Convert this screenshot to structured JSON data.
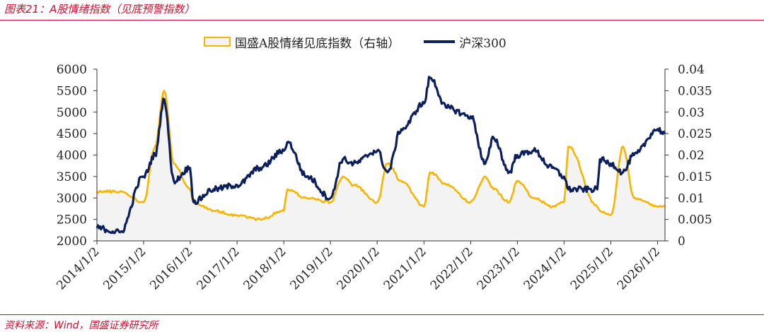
{
  "figure_title": "图表21：A股情绪指数（见底预警指数）",
  "source": "资料来源：Wind，国盛证券研究所",
  "colors": {
    "sentiment": "#f7b500",
    "sentiment_fill": "#f3f3f3",
    "index": "#0b1f5c",
    "accent": "#c8102e"
  },
  "chart_data": {
    "type": "line",
    "title": "图表21：A股情绪指数（见底预警指数）",
    "x": [
      "2014/1/2",
      "2014/7/1",
      "2015/1/2",
      "2015/4/1",
      "2015/6/12",
      "2015/8/26",
      "2015/12/31",
      "2016/1/28",
      "2016/7/1",
      "2017/1/2",
      "2017/7/1",
      "2018/1/2",
      "2018/1/29",
      "2018/7/1",
      "2019/1/2",
      "2019/4/8",
      "2019/7/1",
      "2020/1/2",
      "2020/3/23",
      "2020/7/9",
      "2021/1/2",
      "2021/2/18",
      "2021/7/1",
      "2022/1/2",
      "2022/4/26",
      "2022/7/1",
      "2022/10/31",
      "2023/1/2",
      "2023/5/9",
      "2023/10/1",
      "2024/1/2",
      "2024/2/5",
      "2024/9/18",
      "2024/10/8",
      "2025/1/2",
      "2025/4/7",
      "2025/7/1",
      "2026/1/2",
      "2026/3/1"
    ],
    "categories": [
      "2014/1/2",
      "2015/1/2",
      "2016/1/2",
      "2017/1/2",
      "2018/1/2",
      "2019/1/2",
      "2020/1/2",
      "2021/1/2",
      "2022/1/2",
      "2023/1/2",
      "2024/1/2",
      "2025/1/2",
      "2026/1/2"
    ],
    "series": [
      {
        "name": "国盛A股情绪见底指数（右轴）",
        "axis": "right",
        "style": "area",
        "values": [
          0.0115,
          0.0115,
          0.009,
          0.022,
          0.035,
          0.018,
          0.012,
          0.009,
          0.007,
          0.006,
          0.005,
          0.007,
          0.012,
          0.01,
          0.009,
          0.015,
          0.013,
          0.009,
          0.018,
          0.014,
          0.008,
          0.016,
          0.013,
          0.009,
          0.015,
          0.012,
          0.009,
          0.014,
          0.01,
          0.008,
          0.009,
          0.022,
          0.008,
          0.007,
          0.006,
          0.022,
          0.01,
          0.008,
          0.008
        ]
      },
      {
        "name": "沪深300",
        "axis": "left",
        "style": "line",
        "values": [
          2300,
          2200,
          3500,
          4000,
          5300,
          3400,
          3700,
          2900,
          3200,
          3300,
          3700,
          4100,
          4300,
          3500,
          3000,
          3900,
          3800,
          4100,
          3600,
          4600,
          5200,
          5800,
          5100,
          4900,
          3800,
          4400,
          3600,
          4000,
          4100,
          3700,
          3500,
          3200,
          3200,
          3900,
          3800,
          3600,
          4000,
          4600,
          4500
        ]
      }
    ],
    "legend": [
      "国盛A股情绪见底指数（右轴）",
      "沪深300"
    ],
    "legend_position": "top",
    "ylim_left": [
      2000,
      6000
    ],
    "ylim_right": [
      0,
      0.04
    ],
    "yticks_left": [
      "6000",
      "5500",
      "5000",
      "4500",
      "4000",
      "3500",
      "3000",
      "2500",
      "2000"
    ],
    "yticks_right": [
      "0.04",
      "0.035",
      "0.03",
      "0.025",
      "0.02",
      "0.015",
      "0.01",
      "0.005",
      "0"
    ],
    "xlabel": "",
    "ylabel": "",
    "grid": false
  }
}
